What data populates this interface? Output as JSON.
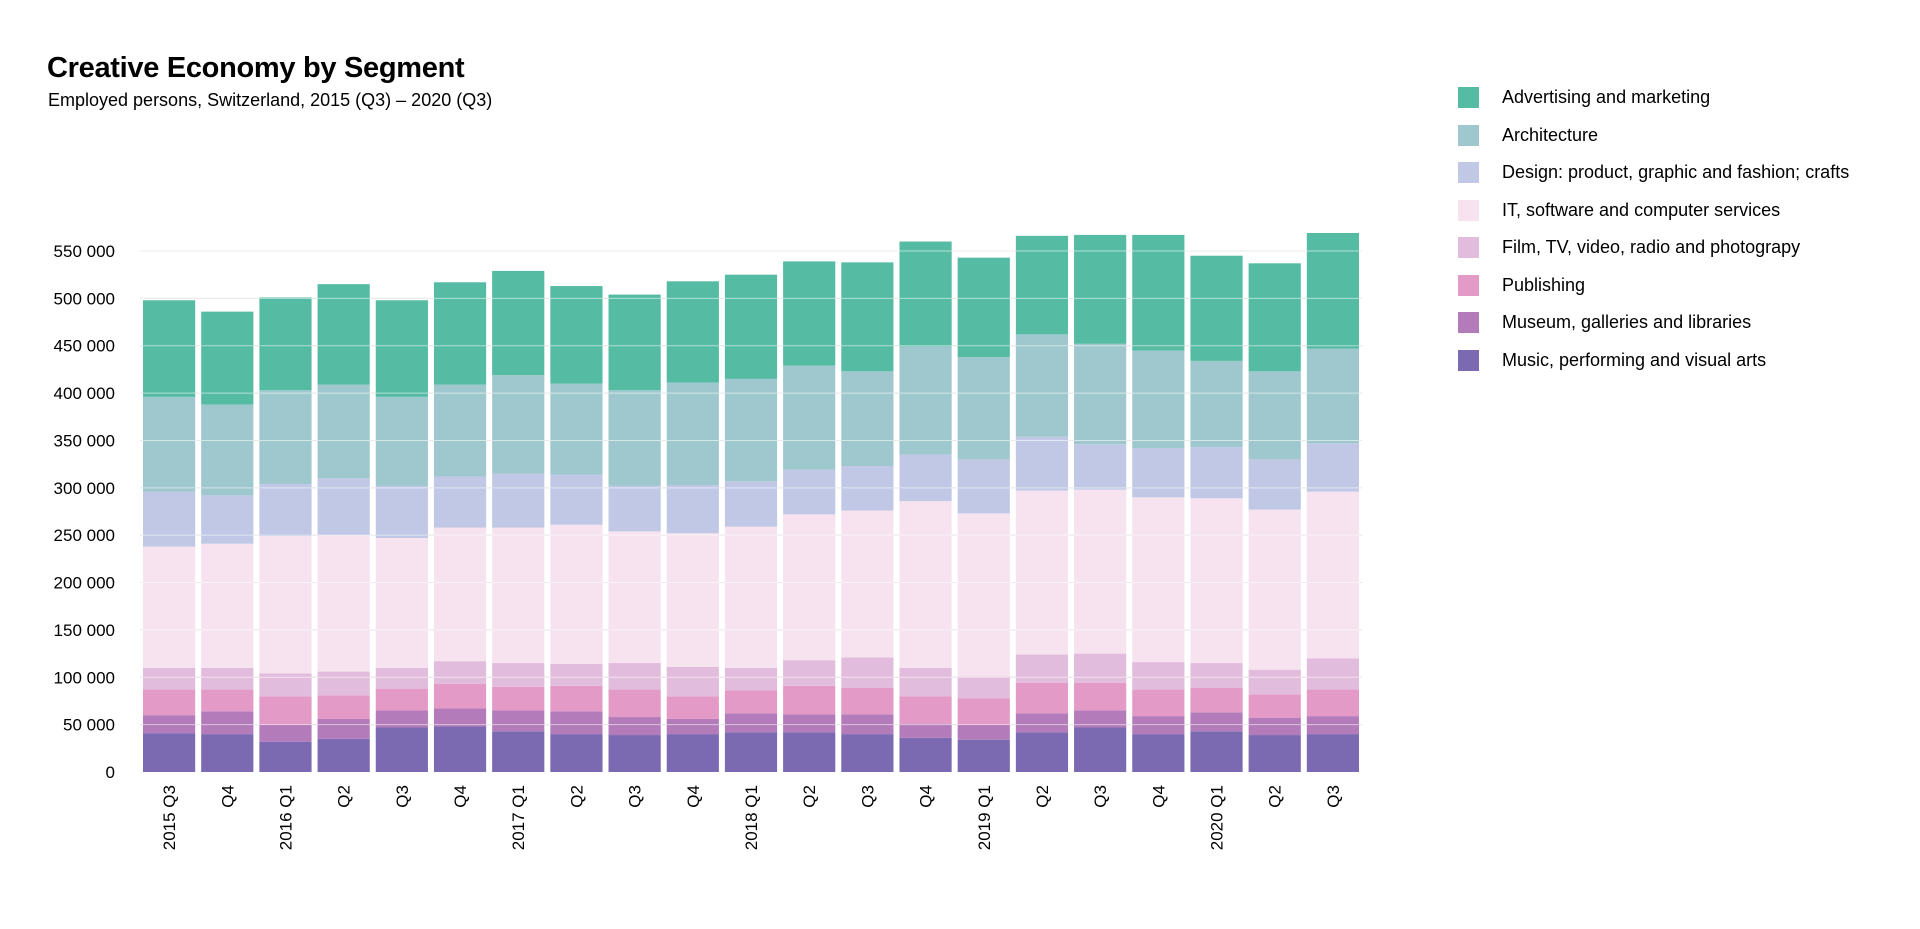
{
  "chart_data": {
    "type": "bar",
    "stacked": true,
    "title": "Creative Economy by Segment",
    "subtitle": "Employed persons, Switzerland, 2015 (Q3) – 2020 (Q3)",
    "xlabel": "",
    "ylabel": "",
    "ylim": [
      0,
      550000
    ],
    "yticks": [
      0,
      50000,
      100000,
      150000,
      200000,
      250000,
      300000,
      350000,
      400000,
      450000,
      500000,
      550000
    ],
    "ytick_labels": [
      "0",
      "50 000",
      "100 000",
      "150 000",
      "200 000",
      "250 000",
      "300 000",
      "350 000",
      "400 000",
      "450 000",
      "500 000",
      "550 000"
    ],
    "grid": true,
    "legend_position": "top-right",
    "categories": [
      "2015 Q3",
      "Q4",
      "2016 Q1",
      "Q2",
      "Q3",
      "Q4",
      "2017 Q1",
      "Q2",
      "Q3",
      "Q4",
      "2018 Q1",
      "Q2",
      "Q3",
      "Q4",
      "2019 Q1",
      "Q2",
      "Q3",
      "Q4",
      "2020 Q1",
      "Q2",
      "Q3"
    ],
    "series": [
      {
        "name": "Music, performing and visual arts",
        "color": "#7b69b1",
        "values": [
          41000,
          40000,
          32000,
          35000,
          47000,
          48000,
          43000,
          40000,
          39000,
          40000,
          42000,
          42000,
          40000,
          36000,
          34000,
          42000,
          47000,
          40000,
          43000,
          39000,
          40000
        ]
      },
      {
        "name": "Museum, galleries and libraries",
        "color": "#b37bba",
        "values": [
          19000,
          24000,
          18000,
          21000,
          18000,
          19000,
          22000,
          24000,
          19000,
          16000,
          20000,
          19000,
          21000,
          15000,
          16000,
          20000,
          18000,
          19000,
          20000,
          18000,
          19000
        ]
      },
      {
        "name": "Publishing",
        "color": "#e39ac6",
        "values": [
          27000,
          23000,
          30000,
          25000,
          23000,
          26000,
          25000,
          27000,
          29000,
          24000,
          24000,
          30000,
          28000,
          29000,
          28000,
          32000,
          29000,
          28000,
          26000,
          25000,
          28000
        ]
      },
      {
        "name": "Film, TV, video, radio and photograpy",
        "color": "#e2bcdc",
        "values": [
          23000,
          23000,
          24000,
          25000,
          22000,
          24000,
          25000,
          23000,
          28000,
          31000,
          24000,
          27000,
          32000,
          30000,
          23000,
          30000,
          31000,
          29000,
          26000,
          26000,
          33000
        ]
      },
      {
        "name": "IT, software and computer services",
        "color": "#f6e3ef",
        "values": [
          128000,
          131000,
          145000,
          144000,
          137000,
          141000,
          143000,
          147000,
          139000,
          141000,
          149000,
          154000,
          155000,
          176000,
          172000,
          173000,
          173000,
          174000,
          174000,
          169000,
          176000
        ]
      },
      {
        "name": "Design: product, graphic and fashion; crafts",
        "color": "#c0c8e6",
        "values": [
          58000,
          51000,
          55000,
          60000,
          55000,
          54000,
          57000,
          53000,
          48000,
          51000,
          48000,
          47000,
          47000,
          49000,
          57000,
          57000,
          48000,
          52000,
          54000,
          53000,
          51000
        ]
      },
      {
        "name": "Architecture",
        "color": "#9ec8cd",
        "values": [
          100000,
          96000,
          99000,
          99000,
          94000,
          97000,
          104000,
          96000,
          101000,
          108000,
          108000,
          110000,
          100000,
          114000,
          108000,
          108000,
          106000,
          103000,
          91000,
          93000,
          100000
        ]
      },
      {
        "name": "Advertising and marketing",
        "color": "#55bba2",
        "values": [
          102000,
          98000,
          98000,
          106000,
          102000,
          108000,
          110000,
          103000,
          101000,
          107000,
          110000,
          110000,
          115000,
          111000,
          105000,
          104000,
          115000,
          122000,
          111000,
          114000,
          122000
        ]
      }
    ]
  },
  "legend": {
    "items": [
      {
        "label": "Advertising and marketing",
        "color": "#55bba2"
      },
      {
        "label": "Architecture",
        "color": "#9ec8cd"
      },
      {
        "label": "Design: product, graphic and fashion; crafts",
        "color": "#c0c8e6"
      },
      {
        "label": "IT, software and computer services",
        "color": "#f6e3ef"
      },
      {
        "label": "Film, TV, video, radio and photograpy",
        "color": "#e2bcdc"
      },
      {
        "label": "Publishing",
        "color": "#e39ac6"
      },
      {
        "label": "Museum, galleries and libraries",
        "color": "#b37bba"
      },
      {
        "label": "Music, performing and visual arts",
        "color": "#7b69b1"
      }
    ]
  },
  "colors": {
    "gridline": "#d2d2d2",
    "background": "#ffffff"
  }
}
